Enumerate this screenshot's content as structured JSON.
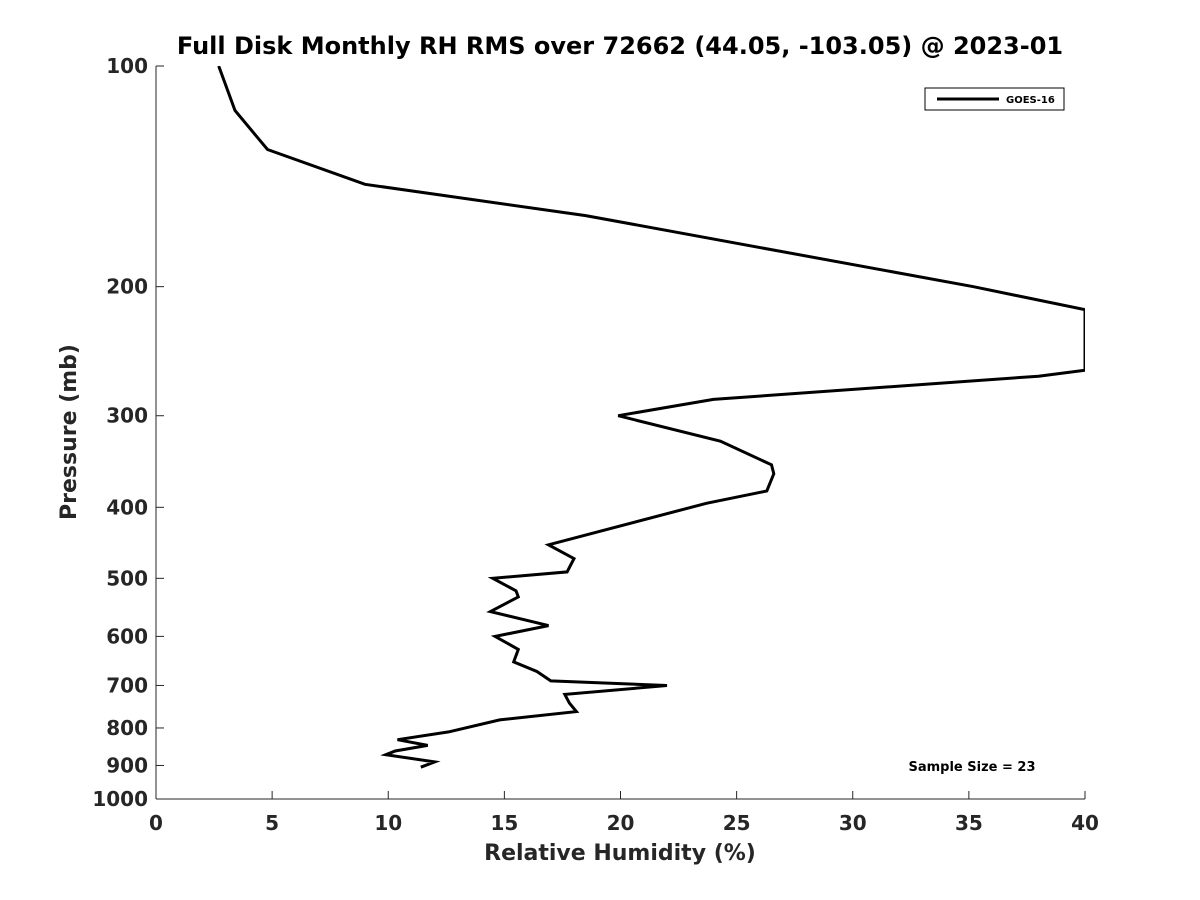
{
  "chart_data": {
    "type": "line",
    "title": "Full Disk Monthly RH RMS over 72662 (44.05, -103.05) @ 2023-01",
    "xlabel": "Relative Humidity (%)",
    "ylabel": "Pressure (mb)",
    "xlim": [
      0,
      40
    ],
    "ylim": [
      100,
      1000
    ],
    "y_scale": "log",
    "y_reversed": true,
    "x_ticks": [
      "0",
      "5",
      "10",
      "15",
      "20",
      "25",
      "30",
      "35",
      "40"
    ],
    "x_tick_values": [
      0,
      5,
      10,
      15,
      20,
      25,
      30,
      35,
      40
    ],
    "y_ticks": [
      "100",
      "200",
      "300",
      "400",
      "500",
      "600",
      "700",
      "800",
      "900",
      "1000"
    ],
    "y_tick_values": [
      100,
      200,
      300,
      400,
      500,
      600,
      700,
      800,
      900,
      1000
    ],
    "grid": false,
    "legend_position": "top-right",
    "series": [
      {
        "name": "GOES-16",
        "color": "#000000",
        "x": [
          2.7,
          3.4,
          4.8,
          9.0,
          18.5,
          35.2,
          40.0,
          40.0,
          38.0,
          24.0,
          19.9,
          24.3,
          26.5,
          26.6,
          26.3,
          23.7,
          16.9,
          18.0,
          17.7,
          14.5,
          15.5,
          15.6,
          14.4,
          16.9,
          14.6,
          15.6,
          15.4,
          16.4,
          17.0,
          22.0,
          17.6,
          17.8,
          18.1,
          14.8,
          12.6,
          10.4,
          11.7,
          10.3,
          9.9,
          12.0,
          11.4
        ],
        "y": [
          100,
          115,
          130,
          145,
          160,
          200,
          215,
          260,
          265,
          285,
          300,
          325,
          350,
          360,
          380,
          395,
          450,
          470,
          490,
          500,
          520,
          530,
          555,
          580,
          600,
          625,
          650,
          670,
          690,
          700,
          720,
          740,
          760,
          780,
          810,
          830,
          845,
          860,
          870,
          890,
          905
        ]
      }
    ],
    "annotations": [
      "Sample Size = 23"
    ]
  }
}
